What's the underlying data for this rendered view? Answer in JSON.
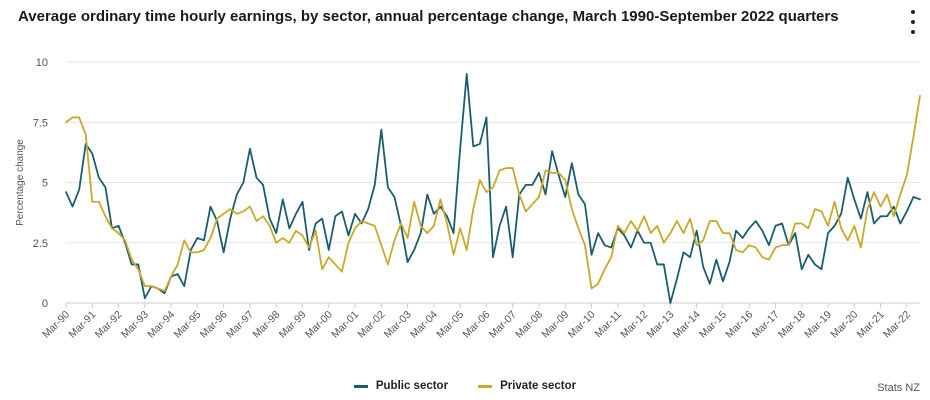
{
  "header": {
    "title": "Average ordinary time hourly earnings, by sector, annual percentage change, March 1990-September 2022 quarters"
  },
  "credit": "Stats NZ",
  "colors": {
    "public": "#1a5e6e",
    "private": "#c9a92a",
    "grid": "#e6e6e6",
    "axis": "#cccccc"
  },
  "chart_data": {
    "type": "line",
    "title": "Average ordinary time hourly earnings, by sector, annual percentage change, March 1990-September 2022 quarters",
    "xlabel": "",
    "ylabel": "Percentage change",
    "ylim": [
      0,
      10
    ],
    "yticks": [
      0,
      2.5,
      5,
      7.5,
      10
    ],
    "ytick_labels": [
      "0",
      "2.5",
      "5",
      "7.5",
      "10"
    ],
    "x_start": "Mar-90",
    "x_count": 131,
    "xtick_labels": [
      "Mar-90",
      "Mar-91",
      "Mar-92",
      "Mar-93",
      "Mar-94",
      "Mar-95",
      "Mar-96",
      "Mar-97",
      "Mar-98",
      "Mar-99",
      "Mar-00",
      "Mar-01",
      "Mar-02",
      "Mar-03",
      "Mar-04",
      "Mar-05",
      "Mar-06",
      "Mar-07",
      "Mar-08",
      "Mar-09",
      "Mar-10",
      "Mar-11",
      "Mar-12",
      "Mar-13",
      "Mar-14",
      "Mar-15",
      "Mar-16",
      "Mar-17",
      "Mar-18",
      "Mar-19",
      "Mar-20",
      "Mar-21",
      "Mar-22"
    ],
    "legend_position": "bottom-center",
    "series": [
      {
        "name": "Public sector",
        "values": [
          4.6,
          4.0,
          4.7,
          6.6,
          6.2,
          5.2,
          4.8,
          3.1,
          3.2,
          2.5,
          1.6,
          1.6,
          0.2,
          0.7,
          0.6,
          0.4,
          1.1,
          1.2,
          0.7,
          2.2,
          2.7,
          2.6,
          4.0,
          3.4,
          2.1,
          3.5,
          4.5,
          5.0,
          6.4,
          5.2,
          4.9,
          3.5,
          2.9,
          4.3,
          3.1,
          3.7,
          4.2,
          2.2,
          3.3,
          3.5,
          2.2,
          3.6,
          3.8,
          2.8,
          3.7,
          3.3,
          3.9,
          4.9,
          7.2,
          4.8,
          4.4,
          3.2,
          1.7,
          2.2,
          2.9,
          4.5,
          3.7,
          4.0,
          3.6,
          2.9,
          6.4,
          9.5,
          6.5,
          6.6,
          7.7,
          1.9,
          3.2,
          4.0,
          1.9,
          4.5,
          4.9,
          4.9,
          5.4,
          4.5,
          6.3,
          5.3,
          4.4,
          5.8,
          4.5,
          4.1,
          2.0,
          2.9,
          2.4,
          2.3,
          3.1,
          2.8,
          2.3,
          3.0,
          2.5,
          2.5,
          1.6,
          1.6,
          0.0,
          1.0,
          2.1,
          1.9,
          3.0,
          1.5,
          0.8,
          1.8,
          0.9,
          1.7,
          3.0,
          2.7,
          3.1,
          3.4,
          3.0,
          2.4,
          3.2,
          3.3,
          2.4,
          2.9,
          1.4,
          2.0,
          1.6,
          1.4,
          2.9,
          3.2,
          3.7,
          5.2,
          4.3,
          3.5,
          4.6,
          3.3,
          3.6,
          3.6,
          4.0,
          3.3,
          3.8,
          4.4,
          4.3
        ]
      },
      {
        "name": "Private sector",
        "values": [
          7.5,
          7.7,
          7.7,
          7.0,
          4.2,
          4.2,
          3.6,
          3.1,
          2.9,
          2.6,
          1.8,
          1.4,
          0.7,
          0.7,
          0.6,
          0.5,
          1.1,
          1.6,
          2.6,
          2.1,
          2.1,
          2.2,
          2.7,
          3.5,
          3.7,
          3.9,
          3.7,
          3.8,
          4.0,
          3.4,
          3.6,
          3.2,
          2.5,
          2.7,
          2.5,
          3.0,
          2.8,
          2.3,
          3.0,
          1.4,
          1.9,
          1.6,
          1.3,
          2.5,
          3.1,
          3.4,
          3.3,
          3.2,
          2.4,
          1.6,
          2.6,
          3.3,
          2.7,
          4.2,
          3.2,
          2.9,
          3.2,
          4.3,
          3.3,
          2.0,
          3.1,
          2.2,
          3.9,
          5.1,
          4.6,
          4.8,
          5.5,
          5.6,
          5.6,
          4.5,
          3.8,
          4.1,
          4.4,
          5.5,
          5.4,
          5.4,
          5.1,
          3.9,
          3.1,
          2.4,
          0.6,
          0.8,
          1.4,
          1.9,
          3.2,
          2.9,
          3.4,
          3.0,
          3.6,
          2.9,
          3.2,
          2.5,
          2.9,
          3.4,
          2.9,
          3.5,
          2.4,
          2.6,
          3.4,
          3.4,
          2.9,
          2.9,
          2.2,
          2.1,
          2.4,
          2.3,
          1.9,
          1.8,
          2.3,
          2.4,
          2.4,
          3.3,
          3.3,
          3.1,
          3.9,
          3.8,
          3.2,
          4.2,
          3.1,
          2.6,
          3.2,
          2.3,
          3.9,
          4.6,
          4.0,
          4.5,
          3.6,
          4.5,
          5.3,
          6.9,
          8.6
        ]
      }
    ]
  }
}
